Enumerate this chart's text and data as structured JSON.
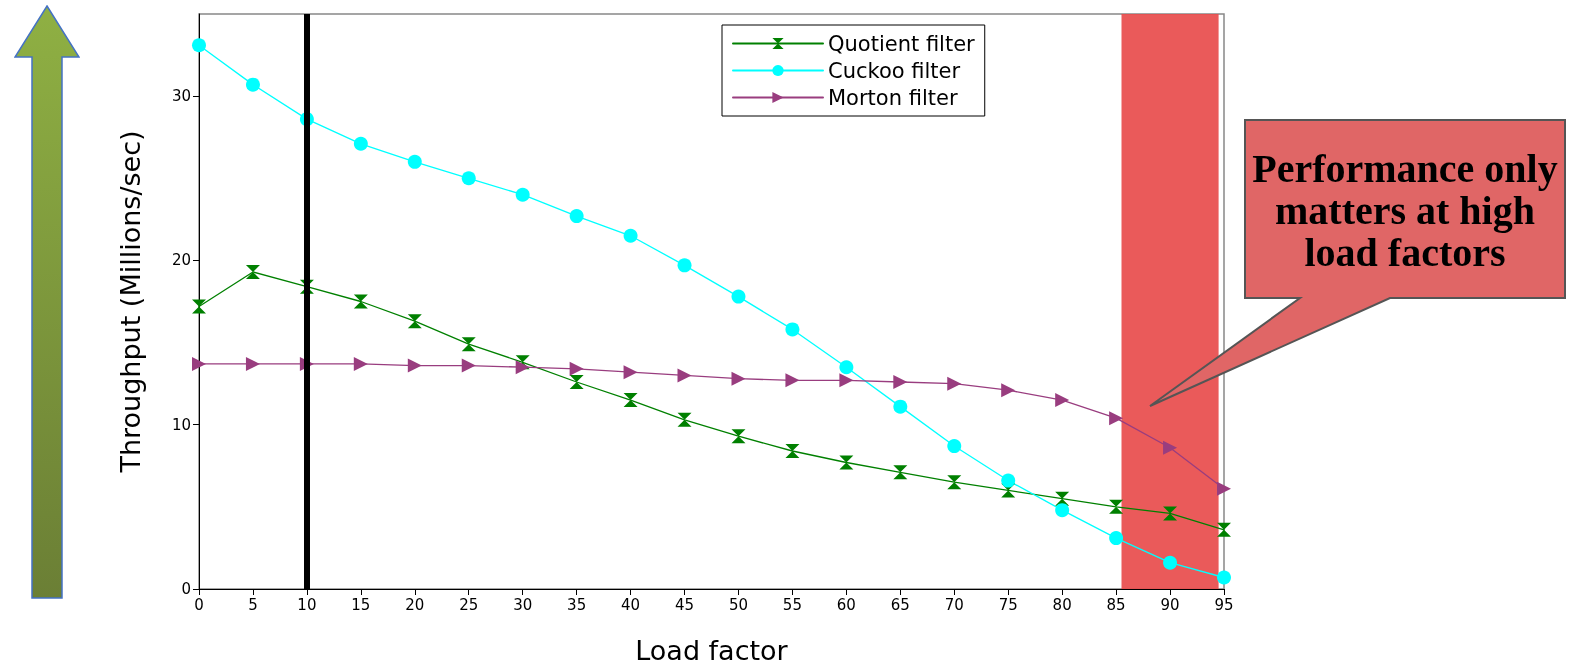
{
  "chart_data": {
    "type": "line",
    "xlabel": "Load factor",
    "ylabel": "Throughput (Millions/sec)",
    "x": [
      0,
      5,
      10,
      15,
      20,
      25,
      30,
      35,
      40,
      45,
      50,
      55,
      60,
      65,
      70,
      75,
      80,
      85,
      90,
      95
    ],
    "xlim": [
      0,
      95
    ],
    "xticks": [
      0,
      5,
      10,
      15,
      20,
      25,
      30,
      35,
      40,
      45,
      50,
      55,
      60,
      65,
      70,
      75,
      80,
      85,
      90,
      95
    ],
    "ylim": [
      0,
      35
    ],
    "yticks": [
      0,
      10,
      20,
      30
    ],
    "series": [
      {
        "name": "Quotient filter",
        "color": "#008000",
        "marker": "cross",
        "values": [
          17.2,
          19.3,
          18.4,
          17.5,
          16.3,
          14.9,
          13.8,
          12.6,
          11.5,
          10.3,
          9.3,
          8.4,
          7.7,
          7.1,
          6.5,
          6.0,
          5.5,
          5.0,
          4.6,
          3.6
        ]
      },
      {
        "name": "Cuckoo filter",
        "color": "#00ffff",
        "marker": "circle",
        "values": [
          33.1,
          30.7,
          28.6,
          27.1,
          26.0,
          25.0,
          24.0,
          22.7,
          21.5,
          19.7,
          17.8,
          15.8,
          13.5,
          11.1,
          8.7,
          6.6,
          4.8,
          3.1,
          1.6,
          0.7
        ]
      },
      {
        "name": "Morton filter",
        "color": "#993d7f",
        "marker": "triangle",
        "values": [
          13.7,
          13.7,
          13.7,
          13.7,
          13.6,
          13.6,
          13.5,
          13.4,
          13.2,
          13.0,
          12.8,
          12.7,
          12.7,
          12.6,
          12.5,
          12.1,
          11.5,
          10.4,
          8.6,
          6.1
        ]
      }
    ],
    "ref_lines": [
      {
        "axis": "x",
        "value": 10,
        "color": "#000000"
      }
    ],
    "bands": [
      {
        "axis": "x",
        "from": 85.5,
        "to": 94.5,
        "color": "#e84c4c",
        "label": "Performance only matters at high load factors"
      }
    ],
    "legend": "top",
    "grid": false
  }
}
